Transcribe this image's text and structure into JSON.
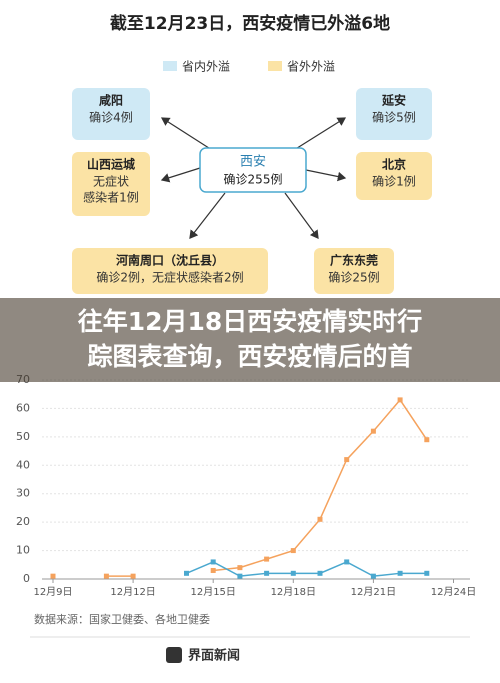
{
  "header": {
    "title": "截至12月23日，西安疫情已外溢6地"
  },
  "diagram": {
    "legend": [
      "省内外溢",
      "省外外溢"
    ],
    "center": {
      "name": "西安",
      "lines": [
        "确诊255例"
      ]
    },
    "nodes": [
      {
        "name": "咸阳",
        "lines": [
          "确诊4例"
        ],
        "group": "省内外溢"
      },
      {
        "name": "山西运城",
        "lines": [
          "无症状",
          "感染者1例"
        ],
        "group": "省外外溢"
      },
      {
        "name": "河南周口（沈丘县）",
        "lines": [
          "确诊2例，无症状感染者2例"
        ],
        "group": "省外外溢"
      },
      {
        "name": "延安",
        "lines": [
          "确诊5例"
        ],
        "group": "省内外溢"
      },
      {
        "name": "北京",
        "lines": [
          "确诊1例"
        ],
        "group": "省外外溢"
      },
      {
        "name": "广东东莞",
        "lines": [
          "确诊25例"
        ],
        "group": "省外外溢"
      }
    ]
  },
  "banner": {
    "lines": [
      "往年12月18日西安疫情实时行",
      "踪图表查询，西安疫情后的首"
    ]
  },
  "chart_data": {
    "type": "line",
    "categories": [
      "12月9日",
      null,
      null,
      "12月12日",
      null,
      null,
      "12月15日",
      null,
      null,
      "12月18日",
      null,
      null,
      "12月21日",
      null,
      null,
      "12月24日"
    ],
    "series": [
      {
        "color": "#f5a25d",
        "values": [
          1,
          null,
          1,
          1,
          null,
          null,
          3,
          4,
          7,
          10,
          21,
          42,
          52,
          63,
          49,
          null
        ]
      },
      {
        "color": "#4aa8cf",
        "values": [
          null,
          null,
          null,
          null,
          null,
          2,
          6,
          1,
          2,
          2,
          2,
          6,
          1,
          2,
          2,
          null
        ]
      }
    ],
    "ylim": [
      0,
      70
    ],
    "yticks": [
      0,
      10,
      20,
      30,
      40,
      50,
      60,
      70
    ],
    "grid": true
  },
  "footer": {
    "source": "数据来源：国家卫健委、各地卫健委",
    "brand": "界面新闻"
  }
}
